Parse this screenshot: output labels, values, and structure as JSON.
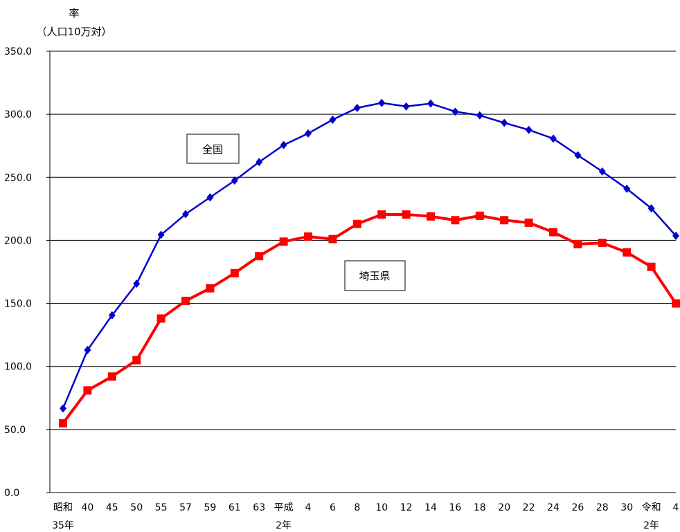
{
  "chart_data": {
    "type": "line",
    "ylabel_line1": "率",
    "ylabel_line2": "（人口10万対）",
    "ylim": [
      0,
      350
    ],
    "yticks": [
      "0.0",
      "50.0",
      "100.0",
      "150.0",
      "200.0",
      "250.0",
      "300.0",
      "350.0"
    ],
    "categories": [
      {
        "line1": "昭和",
        "line2": "35年"
      },
      {
        "line1": "40",
        "line2": ""
      },
      {
        "line1": "45",
        "line2": ""
      },
      {
        "line1": "50",
        "line2": ""
      },
      {
        "line1": "55",
        "line2": ""
      },
      {
        "line1": "57",
        "line2": ""
      },
      {
        "line1": "59",
        "line2": ""
      },
      {
        "line1": "61",
        "line2": ""
      },
      {
        "line1": "63",
        "line2": ""
      },
      {
        "line1": "平成",
        "line2": "2年"
      },
      {
        "line1": "4",
        "line2": ""
      },
      {
        "line1": "6",
        "line2": ""
      },
      {
        "line1": "8",
        "line2": ""
      },
      {
        "line1": "10",
        "line2": ""
      },
      {
        "line1": "12",
        "line2": ""
      },
      {
        "line1": "14",
        "line2": ""
      },
      {
        "line1": "16",
        "line2": ""
      },
      {
        "line1": "18",
        "line2": ""
      },
      {
        "line1": "20",
        "line2": ""
      },
      {
        "line1": "22",
        "line2": ""
      },
      {
        "line1": "24",
        "line2": ""
      },
      {
        "line1": "26",
        "line2": ""
      },
      {
        "line1": "28",
        "line2": ""
      },
      {
        "line1": "30",
        "line2": ""
      },
      {
        "line1": "令和",
        "line2": "2年"
      },
      {
        "line1": "4",
        "line2": ""
      }
    ],
    "grid": true,
    "series": [
      {
        "name": "全国",
        "color": "#0000cc",
        "marker": "diamond",
        "values": [
          66.7,
          113.0,
          140.6,
          165.6,
          204.4,
          220.8,
          234.1,
          247.4,
          262.1,
          275.6,
          284.8,
          295.7,
          305.0,
          309.0,
          306.2,
          308.5,
          302.1,
          299.1,
          293.2,
          287.6,
          280.7,
          267.5,
          254.6,
          240.9,
          225.4,
          203.6
        ]
      },
      {
        "name": "埼玉県",
        "color": "#ff0000",
        "marker": "square",
        "values": [
          55.0,
          81.0,
          92.0,
          105.0,
          138.0,
          152.0,
          162.0,
          174.0,
          187.5,
          199.0,
          203.0,
          201.0,
          213.0,
          220.5,
          220.5,
          219.0,
          216.0,
          219.5,
          216.0,
          214.0,
          206.5,
          197.0,
          198.0,
          190.5,
          179.0,
          150.0
        ]
      }
    ],
    "annotations": [
      {
        "series": "全国",
        "text": "全国"
      },
      {
        "series": "埼玉県",
        "text": "埼玉県"
      }
    ]
  }
}
